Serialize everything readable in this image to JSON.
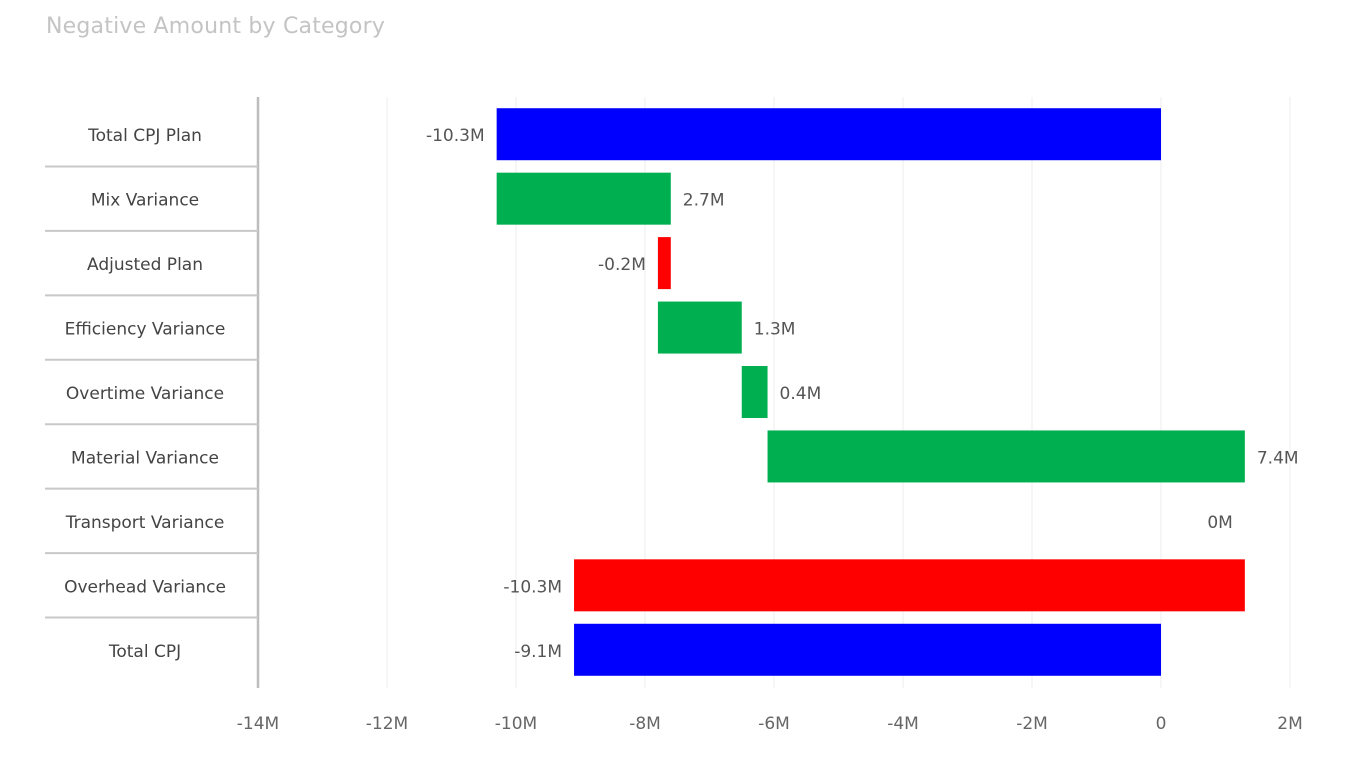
{
  "chart_data": {
    "type": "waterfall",
    "title": "Negative Amount by Category",
    "xlabel": "",
    "ylabel": "",
    "xlim": [
      -14,
      2
    ],
    "unit": "M",
    "grid": true,
    "x_ticks": [
      "-14M",
      "-12M",
      "-10M",
      "-8M",
      "-6M",
      "-4M",
      "-2M",
      "0",
      "2M"
    ],
    "x_tick_values": [
      -14,
      -12,
      -10,
      -8,
      -6,
      -4,
      -2,
      0,
      2
    ],
    "colors": {
      "total": "#0000ff",
      "increase": "#00b050",
      "decrease": "#ff0000"
    },
    "bars": [
      {
        "category": "Total CPJ Plan",
        "kind": "total",
        "start": 0,
        "end": -10.3,
        "label": "-10.3M"
      },
      {
        "category": "Mix Variance",
        "kind": "increase",
        "start": -10.3,
        "end": -7.6,
        "label": "2.7M"
      },
      {
        "category": "Adjusted Plan",
        "kind": "decrease",
        "start": -7.6,
        "end": -7.8,
        "label": "-0.2M"
      },
      {
        "category": "Efficiency Variance",
        "kind": "increase",
        "start": -7.8,
        "end": -6.5,
        "label": "1.3M"
      },
      {
        "category": "Overtime Variance",
        "kind": "increase",
        "start": -6.5,
        "end": -6.1,
        "label": "0.4M"
      },
      {
        "category": "Material Variance",
        "kind": "increase",
        "start": -6.1,
        "end": 1.3,
        "label": "7.4M"
      },
      {
        "category": "Transport Variance",
        "kind": "zero",
        "start": 1.3,
        "end": 1.3,
        "label": "0M"
      },
      {
        "category": "Overhead Variance",
        "kind": "decrease",
        "start": 1.3,
        "end": -9.1,
        "label": "-10.3M"
      },
      {
        "category": "Total CPJ",
        "kind": "total",
        "start": 0,
        "end": -9.1,
        "label": "-9.1M"
      }
    ]
  }
}
